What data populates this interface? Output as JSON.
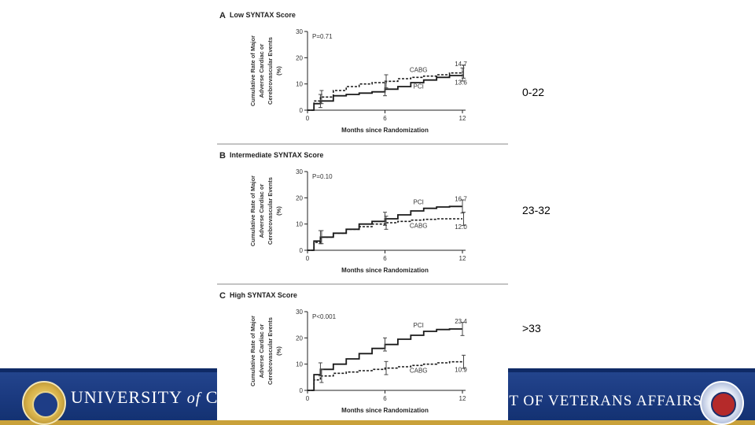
{
  "footer": {
    "university_main": "UNIVERSITY ",
    "university_of": "of",
    "university_cut": " CAL",
    "va_text": "IT OF VETERANS AFFAIRS"
  },
  "labels": {
    "low": "0-22",
    "mid": "23-32",
    "high": ">33"
  },
  "colors": {
    "footer_blue": "#1b3a80",
    "gold": "#c9a13a",
    "line": "#1a1a1a"
  },
  "chart_data": [
    {
      "type": "line",
      "panel": "A",
      "title": "Low SYNTAX Score",
      "pvalue": "P=0.71",
      "xlabel": "Months since Randomization",
      "ylabel": [
        "Cumulative Rate of Major",
        "Adverse Cardiac or",
        "Cerebrovascular Events",
        "(%)"
      ],
      "xticks": [
        "0",
        "6",
        "12"
      ],
      "yticks": [
        "0",
        "10",
        "20",
        "30"
      ],
      "xlim": [
        0,
        12
      ],
      "ylim": [
        0,
        30
      ],
      "series": [
        {
          "name": "PCI",
          "style": "solid",
          "end_label": "13.6",
          "x": [
            0,
            0.5,
            1,
            2,
            3,
            4,
            5,
            6,
            7,
            8,
            9,
            10,
            11,
            12
          ],
          "y": [
            0,
            2.5,
            3.5,
            5.5,
            6,
            6.5,
            7,
            8,
            9,
            10.5,
            11.5,
            12.5,
            13.2,
            13.6
          ]
        },
        {
          "name": "CABG",
          "style": "dashed",
          "end_label": "14.7",
          "x": [
            0,
            0.5,
            1,
            2,
            3,
            4,
            5,
            6,
            7,
            8,
            9,
            10,
            11,
            12
          ],
          "y": [
            0,
            3.5,
            5,
            7.5,
            9,
            10,
            10.5,
            11,
            12,
            12.5,
            13,
            13.5,
            14.2,
            14.7
          ]
        }
      ]
    },
    {
      "type": "line",
      "panel": "B",
      "title": "Intermediate SYNTAX Score",
      "pvalue": "P=0.10",
      "xlabel": "Months since Randomization",
      "ylabel": [
        "Cumulative Rate of Major",
        "Adverse Cardiac or",
        "Cerebrovascular Events",
        "(%)"
      ],
      "xticks": [
        "0",
        "6",
        "12"
      ],
      "yticks": [
        "0",
        "10",
        "20",
        "30"
      ],
      "xlim": [
        0,
        12
      ],
      "ylim": [
        0,
        30
      ],
      "series": [
        {
          "name": "PCI",
          "style": "solid",
          "end_label": "16.7",
          "x": [
            0,
            0.5,
            1,
            2,
            3,
            4,
            5,
            6,
            7,
            8,
            9,
            10,
            11,
            12
          ],
          "y": [
            0,
            3.5,
            5,
            6.5,
            8,
            10,
            11,
            12,
            13.5,
            15,
            16,
            16.5,
            16.7,
            16.7
          ]
        },
        {
          "name": "CABG",
          "style": "dashed",
          "end_label": "12.0",
          "x": [
            0,
            0.5,
            1,
            2,
            3,
            4,
            5,
            6,
            7,
            8,
            9,
            10,
            11,
            12
          ],
          "y": [
            0,
            3,
            5,
            6.5,
            8,
            9,
            10,
            10.5,
            11,
            11.5,
            11.8,
            12,
            12,
            12
          ]
        }
      ]
    },
    {
      "type": "line",
      "panel": "C",
      "title": "High SYNTAX Score",
      "pvalue": "P<0.001",
      "xlabel": "Months since Randomization",
      "ylabel": [
        "Cumulative Rate of Major",
        "Adverse Cardiac or",
        "Cerebrovascular Events",
        "(%)"
      ],
      "xticks": [
        "0",
        "6",
        "12"
      ],
      "yticks": [
        "0",
        "10",
        "20",
        "30"
      ],
      "xlim": [
        0,
        12
      ],
      "ylim": [
        0,
        30
      ],
      "series": [
        {
          "name": "PCI",
          "style": "solid",
          "end_label": "23.4",
          "x": [
            0,
            0.5,
            1,
            2,
            3,
            4,
            5,
            6,
            7,
            8,
            9,
            10,
            11,
            12
          ],
          "y": [
            0,
            6,
            8,
            10,
            12,
            14,
            16,
            17.5,
            19.5,
            21,
            22.5,
            23.2,
            23.4,
            23.4
          ]
        },
        {
          "name": "CABG",
          "style": "dashed",
          "end_label": "10.9",
          "x": [
            0,
            0.5,
            1,
            2,
            3,
            4,
            5,
            6,
            7,
            8,
            9,
            10,
            11,
            12
          ],
          "y": [
            0,
            4,
            5.5,
            6.5,
            7,
            7.5,
            8,
            8.5,
            9,
            9.5,
            10,
            10.5,
            10.9,
            10.9
          ]
        }
      ]
    }
  ]
}
